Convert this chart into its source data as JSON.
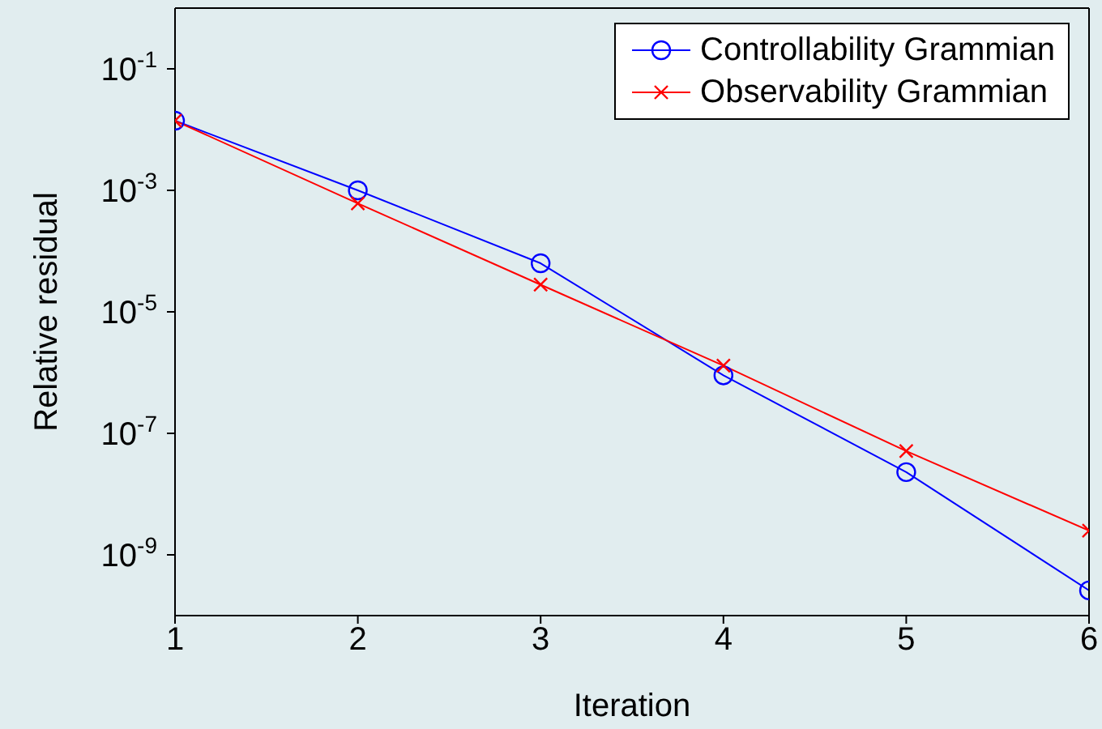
{
  "chart_data": {
    "type": "line",
    "xlabel": "Iteration",
    "ylabel": "Relative residual",
    "x": [
      1,
      2,
      3,
      4,
      5,
      6
    ],
    "series": [
      {
        "name": "Controllability Grammian",
        "color": "#0000ff",
        "marker": "circle",
        "values": [
          0.014,
          0.001,
          6.3e-05,
          9e-07,
          2.3e-08,
          2.6e-10
        ]
      },
      {
        "name": "Observability Grammian",
        "color": "#ff0000",
        "marker": "cross",
        "values": [
          0.014,
          0.00061,
          2.8e-05,
          1.3e-06,
          5.1e-08,
          2.5e-09
        ]
      }
    ],
    "log": "y",
    "xlim": [
      1,
      6
    ],
    "xticks": [
      1,
      2,
      3,
      4,
      5,
      6
    ],
    "ylim": [
      1e-10,
      1
    ],
    "yticks": [
      {
        "value": 0.1,
        "label": "10$^{-1}$"
      },
      {
        "value": 0.001,
        "label": "10$^{-3}$"
      },
      {
        "value": 1e-05,
        "label": "10$^{-5}$"
      },
      {
        "value": 1e-07,
        "label": "10$^{-7}$"
      },
      {
        "value": 1e-09,
        "label": "10$^{-9}$"
      }
    ],
    "legend": "top right"
  }
}
